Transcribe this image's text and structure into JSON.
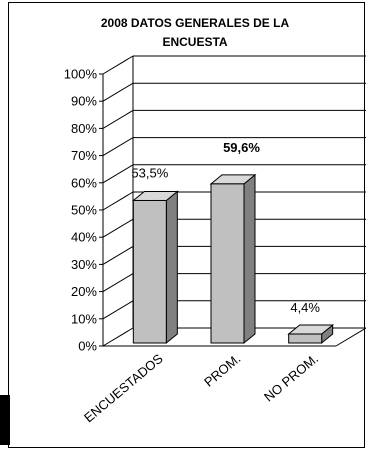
{
  "chart_data": {
    "type": "bar",
    "title": "2008 DATOS GENERALES DE LA ENCUESTA",
    "categories": [
      "ENCUESTADOS",
      "PROM.",
      "NO PROM."
    ],
    "values": [
      53.5,
      59.6,
      4.4
    ],
    "value_labels": [
      "53,5%",
      "59,6%",
      "4,4%"
    ],
    "bold_labels": [
      false,
      true,
      false
    ],
    "ylim": [
      0,
      100
    ],
    "yticks": [
      "0%",
      "10%",
      "20%",
      "30%",
      "40%",
      "50%",
      "60%",
      "70%",
      "80%",
      "90%",
      "100%"
    ],
    "grid": true,
    "three_d": true,
    "colors": {
      "bar_front": "#c0c0c0",
      "bar_side": "#808080",
      "bar_top": "#d9d9d9",
      "line": "#000000",
      "background": "#ffffff"
    }
  }
}
